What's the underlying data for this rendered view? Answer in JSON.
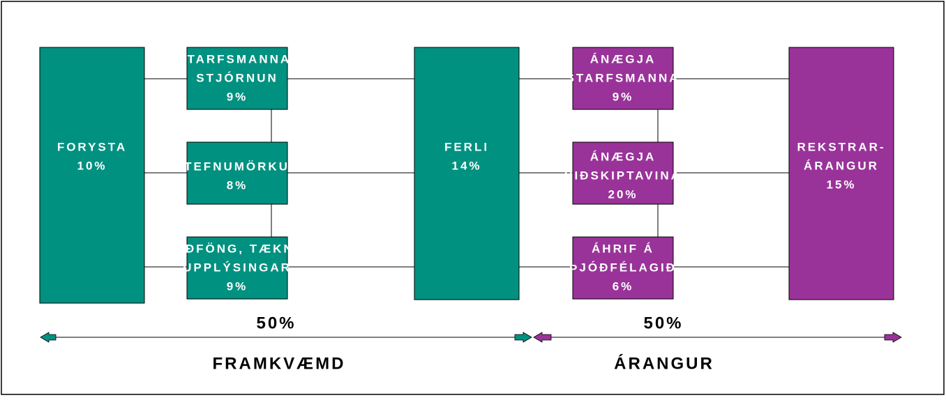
{
  "nodes": [
    {
      "lines": [
        "FORYSTA",
        "10%"
      ]
    },
    {
      "lines": [
        "STARFSMANNA-",
        "STJÓRNUN",
        "9%"
      ]
    },
    {
      "lines": [
        "STEFNUMÖRKUN",
        "8%"
      ]
    },
    {
      "lines": [
        "AÐFÖNG, TÆKNI",
        "UPPLÝSINGAR",
        "9%"
      ]
    },
    {
      "lines": [
        "FERLI",
        "14%"
      ]
    },
    {
      "lines": [
        "ÁNÆGJA",
        "STARFSMANNA",
        "9%"
      ]
    },
    {
      "lines": [
        "ÁNÆGJA",
        "VIÐSKIPTAVINA",
        "20%"
      ]
    },
    {
      "lines": [
        "ÁHRIF Á",
        "ÞJÓÐFÉLAGIÐ",
        "6%"
      ]
    },
    {
      "lines": [
        "REKSTRAR-",
        "ÁRANGUR",
        "15%"
      ]
    }
  ],
  "footer": {
    "left": {
      "share": "50%",
      "label": "FRAMKVÆMD"
    },
    "right": {
      "share": "50%",
      "label": "ÁRANGUR"
    }
  }
}
